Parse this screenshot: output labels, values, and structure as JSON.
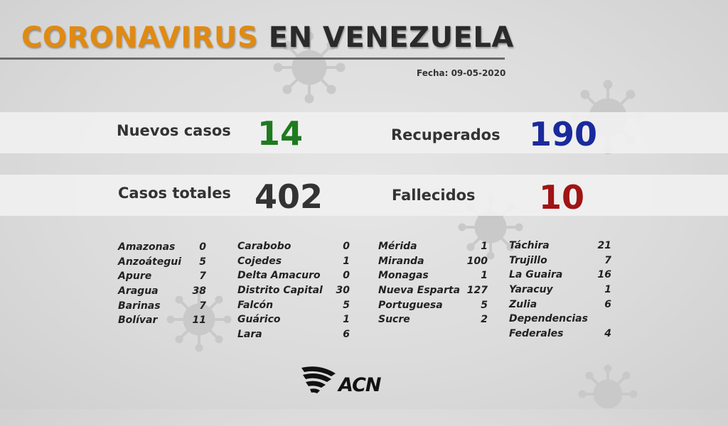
{
  "header": {
    "title_accent": "CORONAVIRUS",
    "title_rest": "EN VENEZUELA",
    "date": "Fecha: 09-05-2020"
  },
  "stats": {
    "nuevos_label": "Nuevos casos",
    "nuevos_value": "14",
    "recuperados_label": "Recuperados",
    "recuperados_value": "190",
    "totales_label": "Casos totales",
    "totales_value": "402",
    "fallecidos_label": "Fallecidos",
    "fallecidos_value": "10"
  },
  "colors": {
    "accent": "#e08a12",
    "nuevos": "#1f7a1f",
    "recuperados": "#1a2a9c",
    "totales": "#333333",
    "fallecidos": "#a01414"
  },
  "states": {
    "col1": [
      {
        "name": "Amazonas",
        "value": "0"
      },
      {
        "name": "Anzoátegui",
        "value": "5"
      },
      {
        "name": "Apure",
        "value": "7"
      },
      {
        "name": "Aragua",
        "value": "38"
      },
      {
        "name": "Barinas",
        "value": "7"
      },
      {
        "name": "Bolívar",
        "value": "11"
      }
    ],
    "col2": [
      {
        "name": "Carabobo",
        "value": "0"
      },
      {
        "name": "Cojedes",
        "value": "1"
      },
      {
        "name": "Delta Amacuro",
        "value": "0"
      },
      {
        "name": "Distrito Capital",
        "value": "30"
      },
      {
        "name": "Falcón",
        "value": "5"
      },
      {
        "name": "Guárico",
        "value": "1"
      },
      {
        "name": "Lara",
        "value": "6"
      }
    ],
    "col3": [
      {
        "name": "Mérida",
        "value": "1"
      },
      {
        "name": "Miranda",
        "value": "100"
      },
      {
        "name": "Monagas",
        "value": "1"
      },
      {
        "name": "Nueva Esparta",
        "value": "127"
      },
      {
        "name": "Portuguesa",
        "value": "5"
      },
      {
        "name": "Sucre",
        "value": "2"
      }
    ],
    "col4": [
      {
        "name": "Táchira",
        "value": "21"
      },
      {
        "name": "Trujillo",
        "value": "7"
      },
      {
        "name": "La Guaira",
        "value": "16"
      },
      {
        "name": "Yaracuy",
        "value": "1"
      },
      {
        "name": "Zulia",
        "value": "6"
      },
      {
        "name": "Dependencias",
        "value": ""
      },
      {
        "name": "Federales",
        "value": "4"
      }
    ]
  },
  "logo": {
    "text": "ACN"
  }
}
